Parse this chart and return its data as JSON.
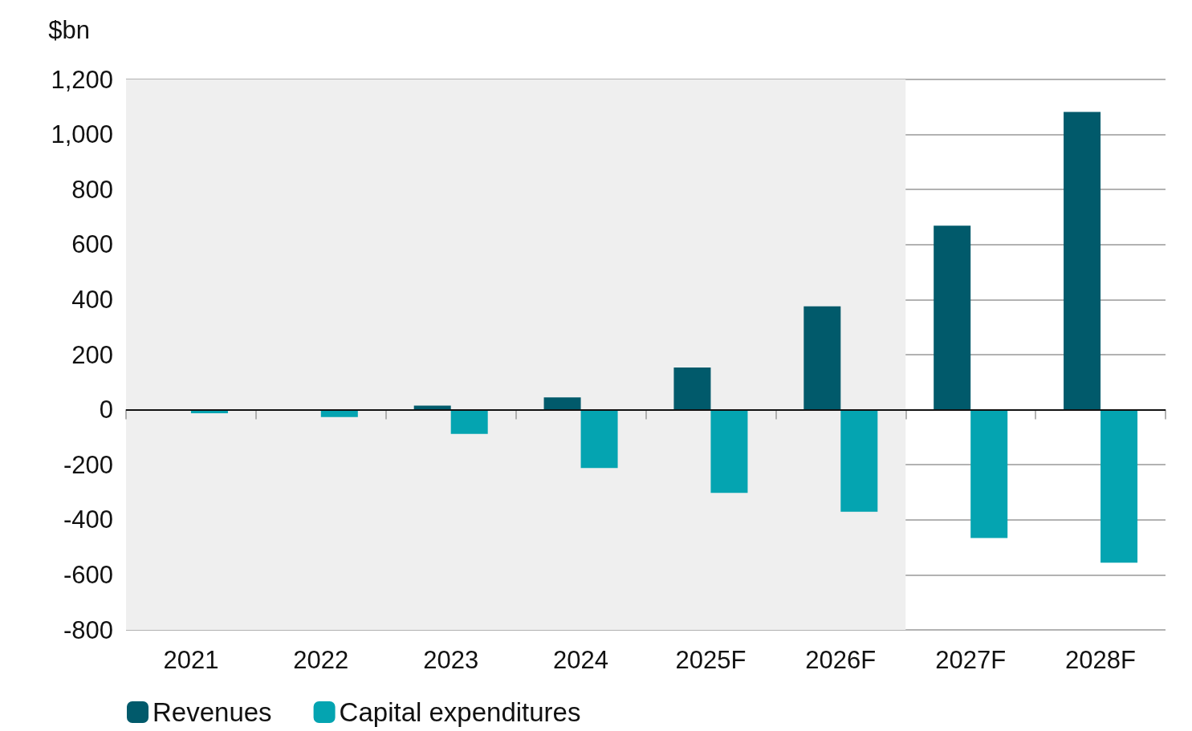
{
  "chart_data": {
    "type": "bar",
    "ylabel": "$bn",
    "categories": [
      "2021",
      "2022",
      "2023",
      "2024",
      "2025F",
      "2026F",
      "2027F",
      "2028F"
    ],
    "series": [
      {
        "name": "Revenues",
        "color": "#015a6b",
        "values": [
          0,
          0,
          15,
          45,
          153,
          376,
          669,
          1082
        ]
      },
      {
        "name": "Capital expenditures",
        "color": "#04a4b1",
        "values": [
          -13,
          -27,
          -88,
          -212,
          -302,
          -371,
          -466,
          -556
        ]
      }
    ],
    "ylim": [
      -800,
      1200
    ],
    "yticks": [
      {
        "value": 1200,
        "label": "1,200"
      },
      {
        "value": 1000,
        "label": "1,000"
      },
      800,
      600,
      400,
      200,
      0,
      -200,
      -400,
      -600,
      -800
    ],
    "bands": [
      {
        "axis": "x",
        "from": "2021",
        "to": "2026F",
        "color": "#efefef"
      }
    ],
    "ref_lines": [
      {
        "axis": "y",
        "value": 0,
        "color": "#111111"
      }
    ],
    "grid": "y",
    "legend": "bottom left"
  }
}
